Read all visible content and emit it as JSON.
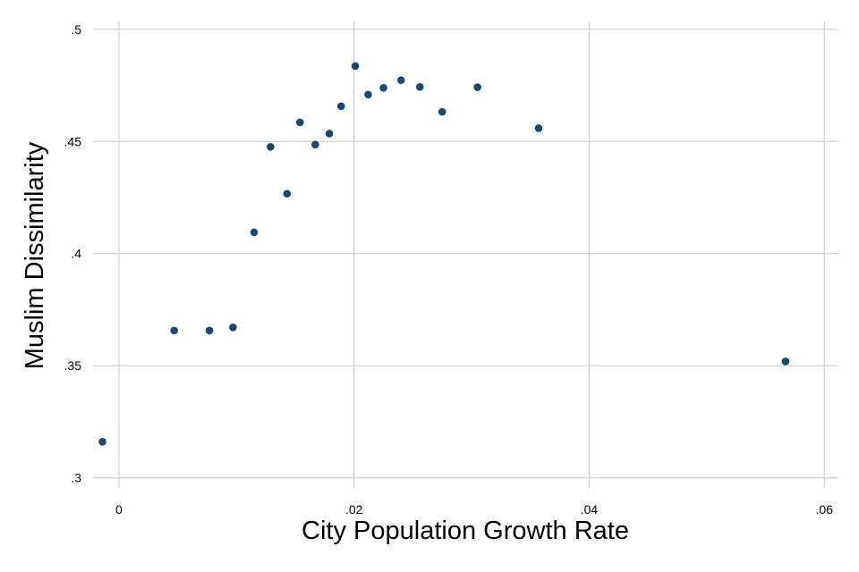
{
  "chart_data": {
    "type": "scatter",
    "title": "",
    "xlabel": "City Population Growth Rate",
    "ylabel": "Muslim Dissimilarity",
    "xlim": [
      -0.0022,
      0.0612
    ],
    "ylim": [
      0.2955,
      0.5035
    ],
    "xticks": [
      {
        "value": 0,
        "label": "0"
      },
      {
        "value": 0.02,
        "label": ".02"
      },
      {
        "value": 0.04,
        "label": ".04"
      },
      {
        "value": 0.06,
        "label": ".06"
      }
    ],
    "yticks": [
      {
        "value": 0.3,
        "label": ".3"
      },
      {
        "value": 0.35,
        "label": ".35"
      },
      {
        "value": 0.4,
        "label": ".4"
      },
      {
        "value": 0.45,
        "label": ".45"
      },
      {
        "value": 0.5,
        "label": ".5"
      }
    ],
    "grid": true,
    "marker_color": "#1a476f",
    "points": [
      {
        "x": -0.0014,
        "y": 0.3161
      },
      {
        "x": 0.0047,
        "y": 0.3657
      },
      {
        "x": 0.0077,
        "y": 0.3657
      },
      {
        "x": 0.0097,
        "y": 0.3671
      },
      {
        "x": 0.0115,
        "y": 0.4095
      },
      {
        "x": 0.0129,
        "y": 0.4476
      },
      {
        "x": 0.0143,
        "y": 0.4267
      },
      {
        "x": 0.0154,
        "y": 0.4585
      },
      {
        "x": 0.0167,
        "y": 0.4486
      },
      {
        "x": 0.0179,
        "y": 0.4535
      },
      {
        "x": 0.0189,
        "y": 0.4657
      },
      {
        "x": 0.0201,
        "y": 0.4836
      },
      {
        "x": 0.0212,
        "y": 0.4709
      },
      {
        "x": 0.0225,
        "y": 0.4739
      },
      {
        "x": 0.024,
        "y": 0.4773
      },
      {
        "x": 0.0256,
        "y": 0.4743
      },
      {
        "x": 0.0275,
        "y": 0.4632
      },
      {
        "x": 0.0305,
        "y": 0.4742
      },
      {
        "x": 0.0357,
        "y": 0.4559
      },
      {
        "x": 0.0567,
        "y": 0.3519
      }
    ]
  }
}
